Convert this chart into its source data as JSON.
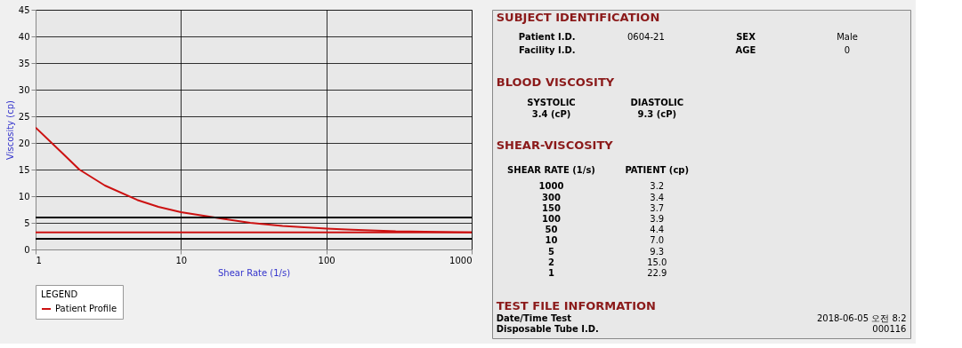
{
  "chart_data": [
    {
      "type": "line",
      "xlabel": "Shear Rate (1/s)",
      "ylabel": "Viscosity (cp)",
      "legend_title": "LEGEND",
      "legend": "bottom left",
      "log": "x",
      "grid": true,
      "marker": "none",
      "line_style": "solid",
      "xlim": [
        1,
        1000
      ],
      "xticks": [
        1,
        10,
        100,
        1000
      ],
      "ylim": [
        0,
        45
      ],
      "yticks": [
        0,
        5,
        10,
        15,
        20,
        25,
        30,
        35,
        40,
        45
      ],
      "series": [
        {
          "name": "Patient Profile",
          "color": "#cc1111",
          "x": [
            1,
            1.5,
            2,
            3,
            5,
            7,
            10,
            20,
            30,
            50,
            100,
            150,
            300,
            1000
          ],
          "values": [
            22.9,
            18.3,
            15.0,
            12.0,
            9.3,
            8.0,
            7.0,
            5.7,
            5.0,
            4.4,
            3.9,
            3.7,
            3.4,
            3.2
          ]
        }
      ],
      "ref_lines": [
        {
          "axis": "y",
          "value": 6,
          "color": "#000000"
        },
        {
          "axis": "y",
          "value": 2,
          "color": "#000000"
        },
        {
          "axis": "y",
          "value": 3.2,
          "color": "#cc1111"
        }
      ]
    },
    {
      "type": "other",
      "annotations": [
        "SUBJECT IDENTIFICATION",
        "Patient I.D.",
        "0604-21",
        "SEX",
        "Male",
        "Facility I.D.",
        "AGE",
        "0",
        "BLOOD VISCOSITY",
        "SYSTOLIC",
        "DIASTOLIC",
        "3.4 (cP)",
        "9.3 (cP)",
        "SHEAR-VISCOSITY",
        "SHEAR RATE (1/s)",
        "PATIENT (cp)",
        "1000",
        "3.2",
        "300",
        "3.4",
        "150",
        "3.7",
        "100",
        "3.9",
        "50",
        "4.4",
        "10",
        "7.0",
        "5",
        "9.3",
        "2",
        "15.0",
        "1",
        "22.9",
        "TEST FILE INFORMATION",
        "Date/Time Test",
        "2018-06-05 오전 8:2",
        "Disposable Tube I.D.",
        "000116"
      ]
    }
  ]
}
